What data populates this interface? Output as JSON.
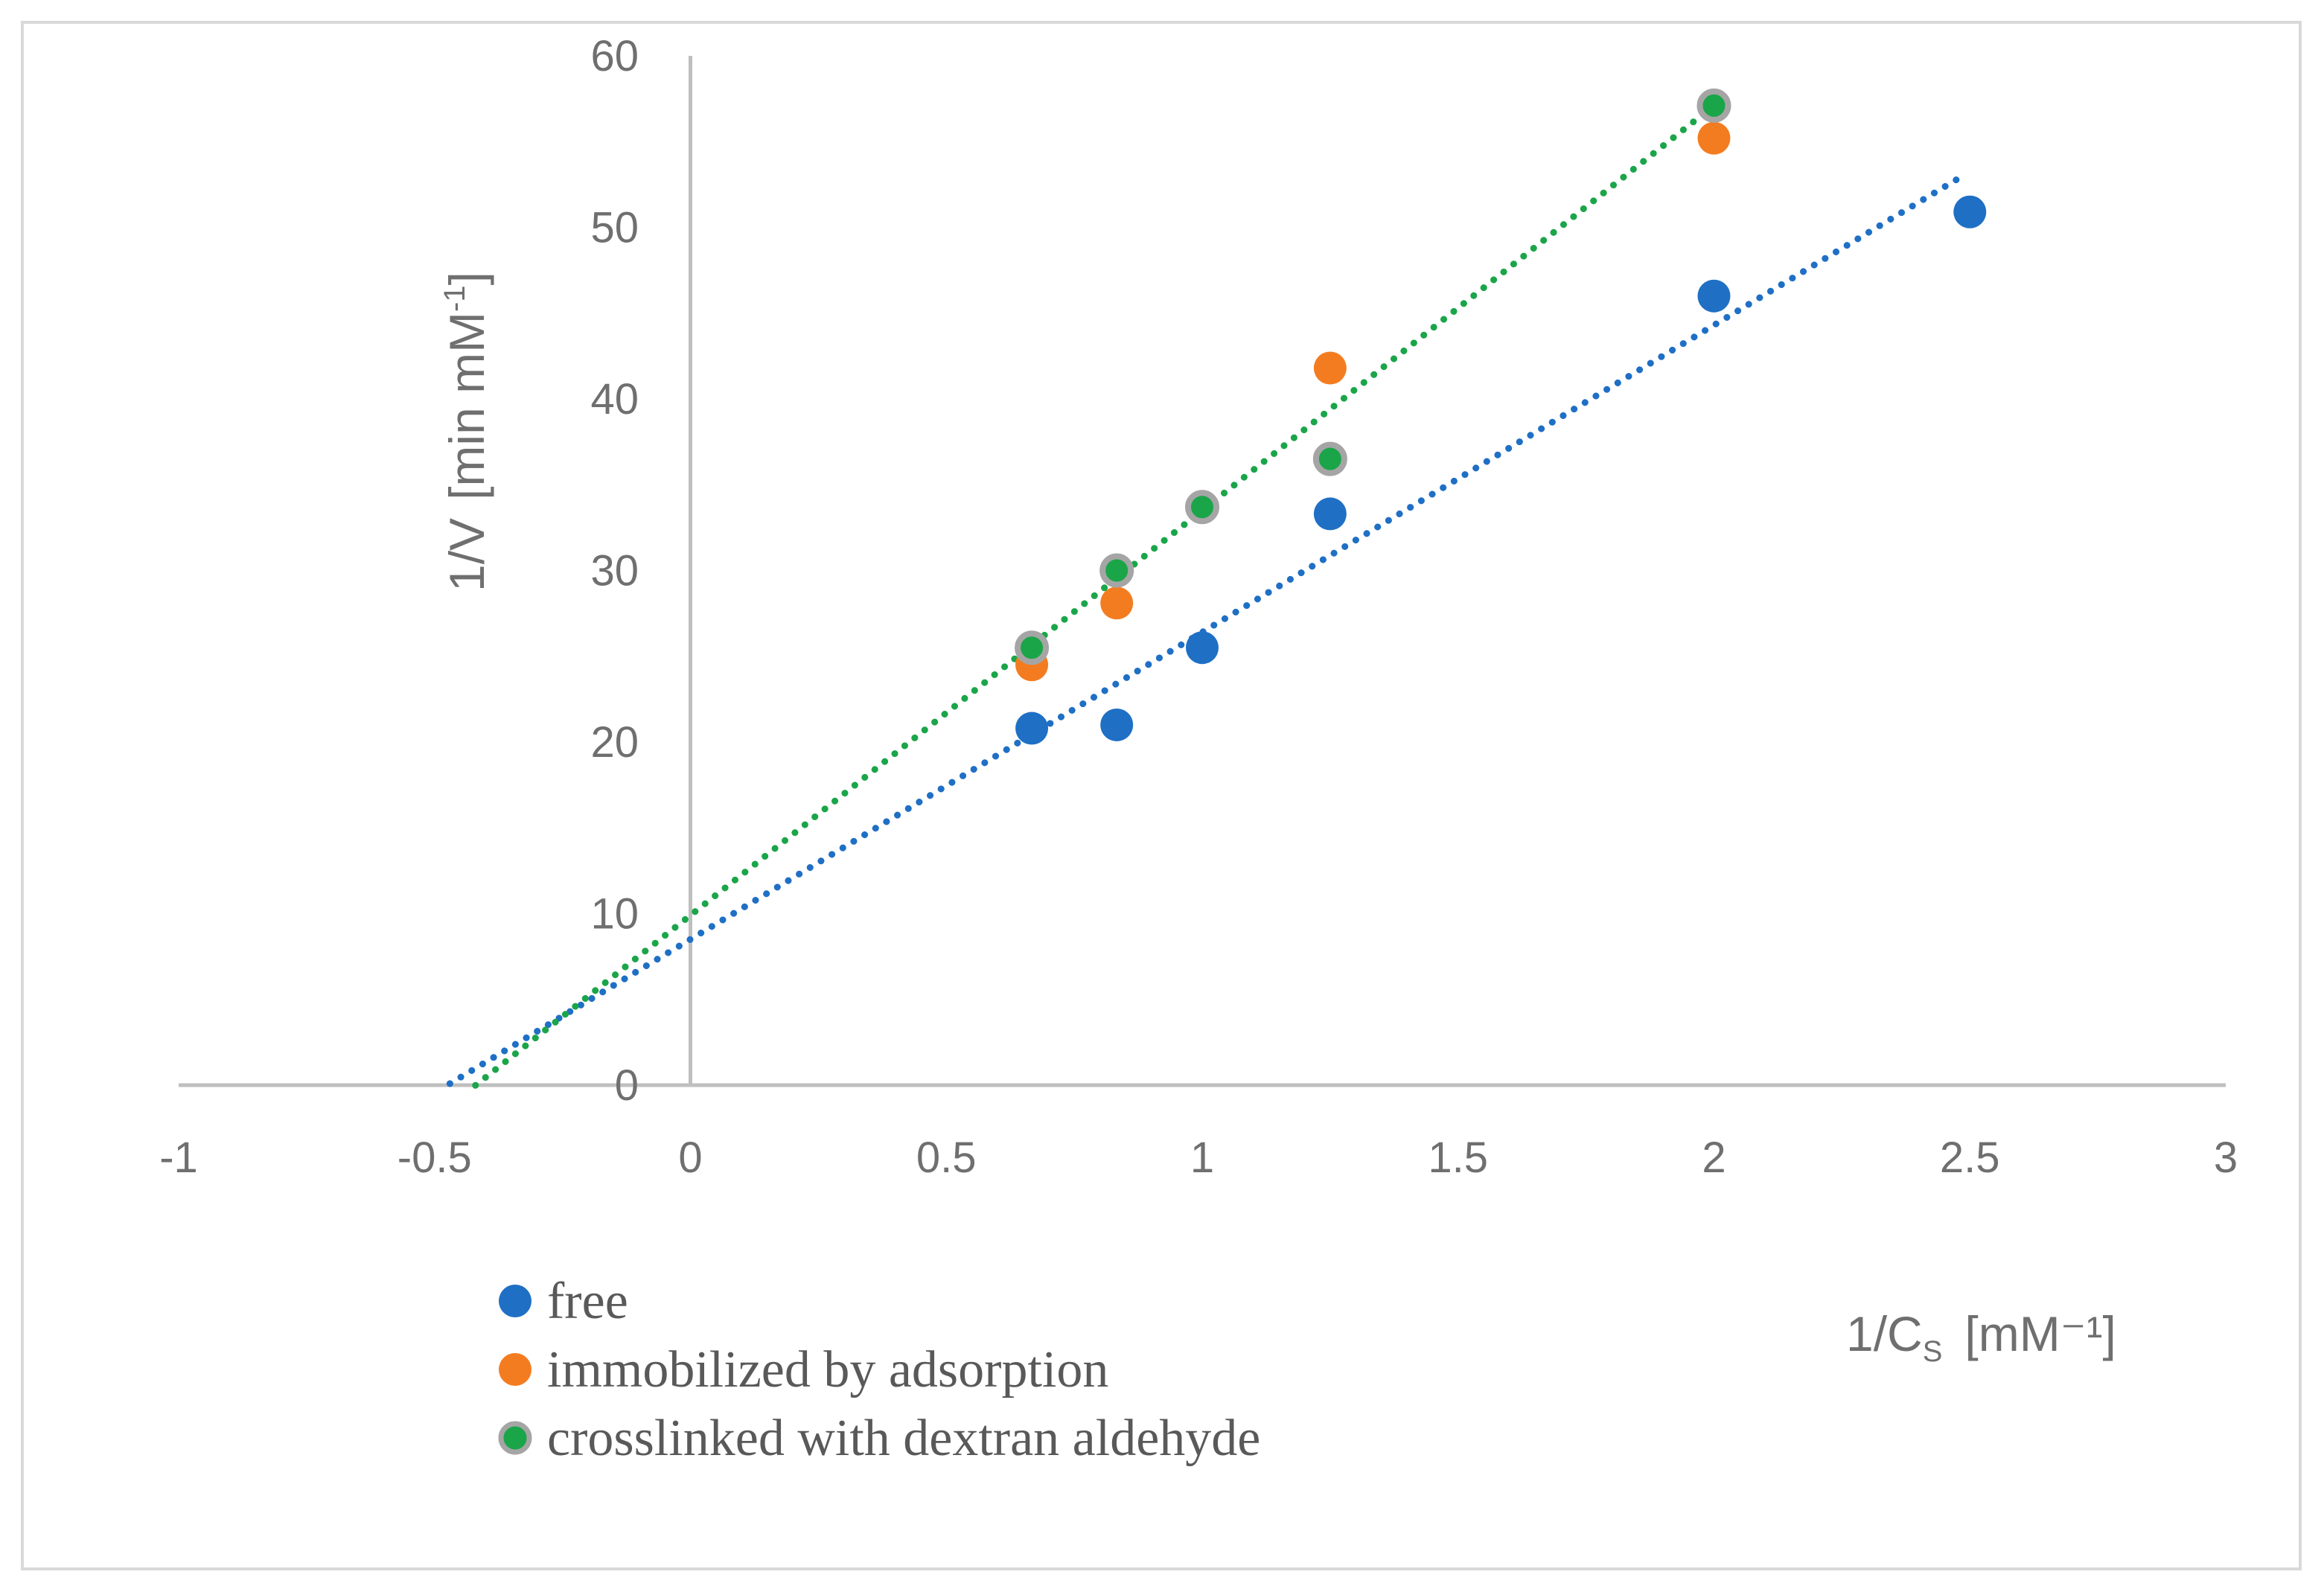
{
  "chart_data": {
    "type": "scatter",
    "title": "",
    "xlabel": {
      "base": "1/C",
      "subscript": "S",
      "unit": "[mM⁻¹]"
    },
    "ylabel": {
      "base": "1/V",
      "unit_prefix": "[min mM",
      "unit_sup": "-1",
      "unit_suffix": "]"
    },
    "xlim": [
      -1,
      3
    ],
    "ylim": [
      0,
      60
    ],
    "xticks": [
      -1,
      -0.5,
      0,
      0.5,
      1,
      1.5,
      2,
      2.5,
      3
    ],
    "xtick_labels": [
      "-1",
      "-0.5",
      "0",
      "0.5",
      "1",
      "1.5",
      "2",
      "2.5",
      "3"
    ],
    "yticks": [
      0,
      10,
      20,
      30,
      40,
      50,
      60
    ],
    "ytick_labels": [
      "0",
      "10",
      "20",
      "30",
      "40",
      "50",
      "60"
    ],
    "grid": false,
    "legend_position": "bottom-left",
    "series": [
      {
        "name": "free",
        "color": "#1f6fc5",
        "marker_edge": "#1f6fc5",
        "x": [
          0.667,
          0.833,
          1.0,
          1.25,
          2.0,
          2.5
        ],
        "y": [
          20.8,
          21.0,
          25.5,
          33.3,
          46.0,
          50.9
        ],
        "trendline": {
          "style": "dotted",
          "x_range": [
            -0.47,
            2.48
          ],
          "slope": 17.9,
          "intercept": 8.5
        }
      },
      {
        "name": "immobilized by adsorption",
        "color": "#f47c20",
        "marker_edge": "#f47c20",
        "x": [
          0.667,
          0.833,
          1.0,
          1.25,
          2.0
        ],
        "y": [
          24.5,
          28.1,
          33.7,
          41.8,
          55.2
        ],
        "trendline": null
      },
      {
        "name": "crosslinked with dextran aldehyde",
        "color": "#1aa549",
        "marker_edge": "#a5a5a5",
        "x": [
          0.667,
          0.833,
          1.0,
          1.25,
          2.0
        ],
        "y": [
          25.5,
          30.0,
          33.7,
          36.5,
          57.1
        ],
        "trendline": {
          "style": "dotted",
          "x_range": [
            -0.42,
            2.0
          ],
          "slope": 23.6,
          "intercept": 9.9
        }
      }
    ]
  }
}
